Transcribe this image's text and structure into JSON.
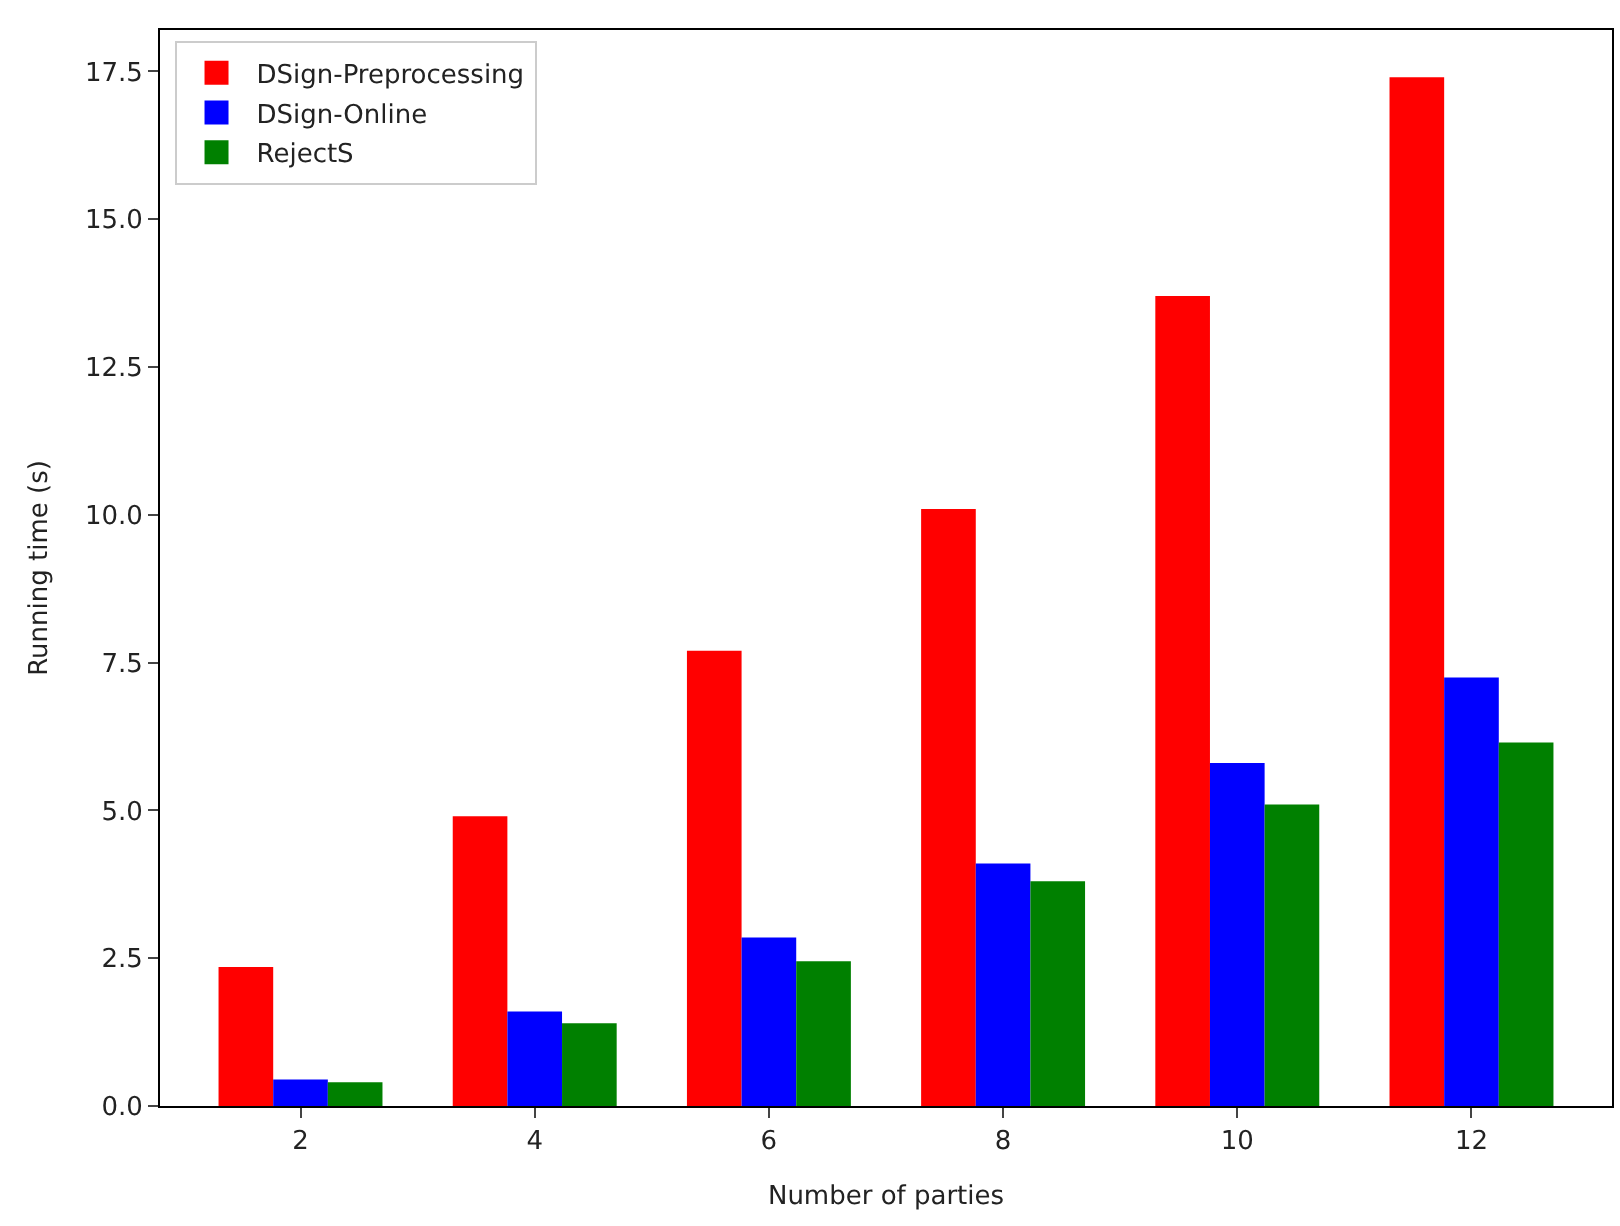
{
  "chart_data": {
    "type": "bar",
    "xlabel": "Number of parties",
    "ylabel": "Running time (s)",
    "categories": [
      "2",
      "4",
      "6",
      "8",
      "10",
      "12"
    ],
    "series": [
      {
        "name": "DSign-Preprocessing",
        "color": "#ff0000",
        "values": [
          2.35,
          4.9,
          7.7,
          10.1,
          13.7,
          17.4
        ]
      },
      {
        "name": "DSign-Online",
        "color": "#0000ff",
        "values": [
          0.45,
          1.6,
          2.85,
          4.1,
          5.8,
          7.25
        ]
      },
      {
        "name": "RejectS",
        "color": "#008000",
        "values": [
          0.4,
          1.4,
          2.45,
          3.8,
          5.1,
          6.15
        ]
      }
    ],
    "ylim": [
      0,
      18.2
    ],
    "yticks": [
      {
        "value": 0,
        "label": "0.0"
      },
      2.5,
      {
        "value": 5,
        "label": "5.0"
      },
      7.5,
      {
        "value": 10,
        "label": "10.0"
      },
      12.5,
      {
        "value": 15,
        "label": "15.0"
      },
      17.5
    ],
    "legend": "top left"
  }
}
